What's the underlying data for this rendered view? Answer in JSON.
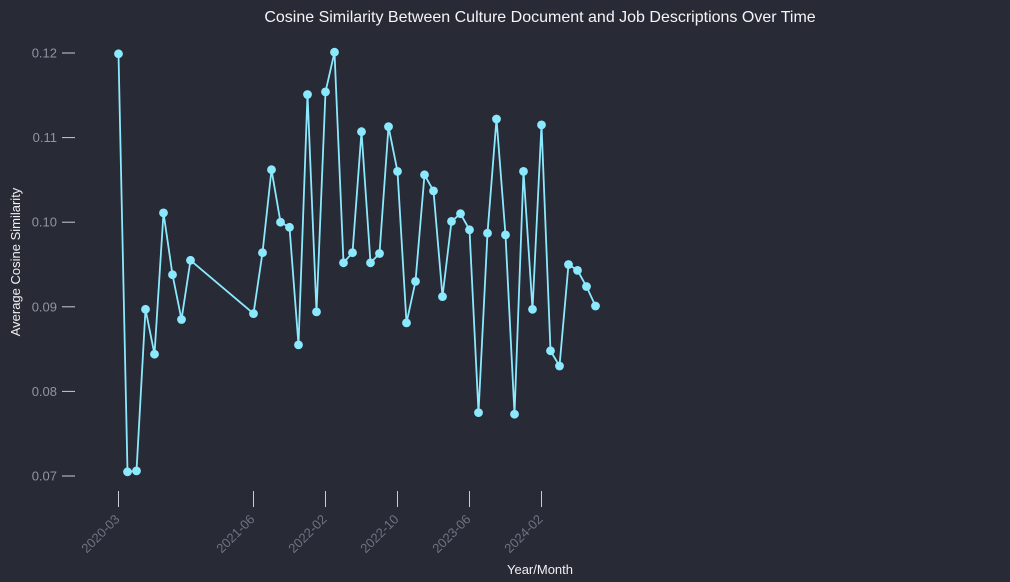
{
  "colors": {
    "background": "#282a36",
    "series": "#8be9fd"
  },
  "chart_data": {
    "type": "line",
    "title": "Cosine Similarity Between Culture Document and Job Descriptions Over Time",
    "xlabel": "Year/Month",
    "ylabel": "Average Cosine Similarity",
    "ylim": [
      0.0675,
      0.1215
    ],
    "yticks": [
      0.07,
      0.08,
      0.09,
      0.1,
      0.11,
      0.12
    ],
    "ytick_labels": [
      "0.07",
      "0.08",
      "0.09",
      "0.10",
      "0.11",
      "0.12"
    ],
    "xticks": [
      "2020-03",
      "2021-06",
      "2022-02",
      "2022-10",
      "2023-06",
      "2024-02"
    ],
    "grid": false,
    "legend": "none",
    "x": [
      "2020-03",
      "2020-04",
      "2020-05",
      "2020-06",
      "2020-07",
      "2020-08",
      "2020-09",
      "2020-10",
      "2020-11",
      "2021-06",
      "2021-07",
      "2021-08",
      "2021-09",
      "2021-10",
      "2021-11",
      "2021-12",
      "2022-01",
      "2022-02",
      "2022-03",
      "2022-04",
      "2022-05",
      "2022-06",
      "2022-07",
      "2022-08",
      "2022-09",
      "2022-10",
      "2022-11",
      "2022-12",
      "2023-01",
      "2023-02",
      "2023-03",
      "2023-04",
      "2023-05",
      "2023-06",
      "2023-07",
      "2023-08",
      "2023-09",
      "2023-10",
      "2023-11",
      "2023-12",
      "2024-01",
      "2024-02",
      "2024-03",
      "2024-04",
      "2024-05",
      "2024-06",
      "2024-07",
      "2024-08"
    ],
    "values": [
      0.1199,
      0.0705,
      0.0706,
      0.0897,
      0.0844,
      0.1011,
      0.0938,
      0.0885,
      0.0955,
      0.0892,
      0.0964,
      0.1062,
      0.1,
      0.0994,
      0.0855,
      0.1151,
      0.0894,
      0.1154,
      0.1201,
      0.0952,
      0.0964,
      0.1107,
      0.0952,
      0.0963,
      0.1113,
      0.106,
      0.0881,
      0.093,
      0.1056,
      0.1037,
      0.0912,
      0.1001,
      0.101,
      0.0991,
      0.0775,
      0.0987,
      0.1122,
      0.0985,
      0.0773,
      0.106,
      0.0897,
      0.1115,
      0.0848,
      0.083,
      0.095,
      0.0943,
      0.0924,
      0.0901
    ]
  }
}
